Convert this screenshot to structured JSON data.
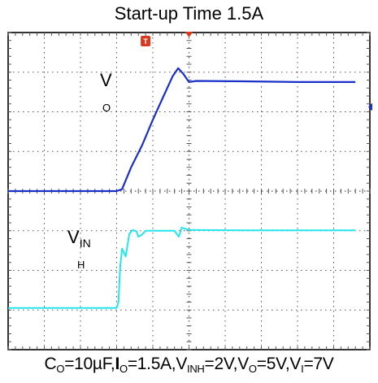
{
  "title": "Start-up Time 1.5A",
  "caption": {
    "c_sym": "C",
    "c_sub": "O",
    "c_val": "=10µF,",
    "i_sym": "I",
    "i_sub": "O",
    "i_val": "=1.5A,",
    "vinh_sym": "V",
    "vinh_sub": "INH",
    "vinh_val": "=2V,",
    "vo_sym": "V",
    "vo_sub": "O",
    "vo_val": "=5V,",
    "vi_sym": "V",
    "vi_sub": "I",
    "vi_val": "=7V"
  },
  "labels": {
    "vo_main": "V",
    "vo_sub": "O",
    "vinh_main": "V",
    "vinh_sub_inline": "IN",
    "vinh_sub_below": "H",
    "trigger_marker": "T"
  },
  "colors": {
    "vo_trace": "#1a2fc8",
    "vinh_trace": "#22e6ee",
    "grid": "#555555",
    "trigger": "#d83a20",
    "frame": "#000000"
  },
  "chart_data": {
    "type": "line",
    "grid": {
      "x_divisions": 10,
      "y_divisions": 8
    },
    "x_range": [
      0,
      10
    ],
    "y_range": [
      0,
      8
    ],
    "trigger_position_div": 5.0,
    "series": [
      {
        "name": "VO",
        "points": [
          [
            0,
            4.0
          ],
          [
            3.0,
            4.0
          ],
          [
            3.15,
            4.05
          ],
          [
            3.4,
            4.6
          ],
          [
            3.7,
            5.15
          ],
          [
            4.0,
            5.8
          ],
          [
            4.3,
            6.4
          ],
          [
            4.55,
            6.9
          ],
          [
            4.7,
            7.1
          ],
          [
            4.85,
            6.95
          ],
          [
            5.0,
            6.75
          ],
          [
            5.2,
            6.78
          ],
          [
            6.5,
            6.77
          ],
          [
            8.0,
            6.75
          ],
          [
            9.6,
            6.75
          ]
        ]
      },
      {
        "name": "VINH",
        "points": [
          [
            0,
            1.05
          ],
          [
            3.0,
            1.05
          ],
          [
            3.05,
            1.2
          ],
          [
            3.1,
            2.1
          ],
          [
            3.15,
            2.55
          ],
          [
            3.25,
            2.35
          ],
          [
            3.35,
            2.92
          ],
          [
            3.45,
            3.02
          ],
          [
            3.55,
            2.98
          ],
          [
            3.6,
            2.85
          ],
          [
            3.7,
            2.9
          ],
          [
            3.8,
            3.0
          ],
          [
            4.0,
            3.0
          ],
          [
            4.6,
            3.0
          ],
          [
            4.72,
            2.85
          ],
          [
            4.8,
            3.08
          ],
          [
            5.0,
            3.02
          ],
          [
            6.5,
            3.01
          ],
          [
            8.0,
            3.01
          ],
          [
            9.6,
            3.01
          ]
        ]
      }
    ]
  }
}
